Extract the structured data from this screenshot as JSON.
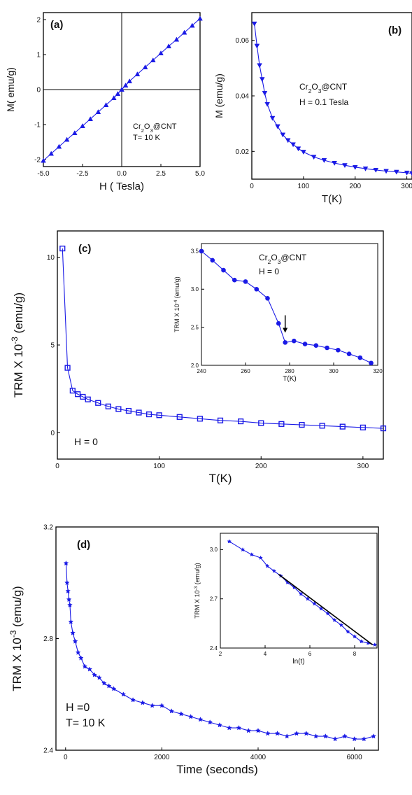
{
  "colors": {
    "series": "#1a1ae6",
    "axis": "#000000",
    "fit": "#000000"
  },
  "chart_data": [
    {
      "id": "a",
      "type": "scatter",
      "panel_label": "(a)",
      "xlabel": "H ( Tesla)",
      "ylabel": "M( emu/g)",
      "annotation_lines": [
        "Cr2O3@CNT",
        "T= 10 K"
      ],
      "xlim": [
        -5,
        5
      ],
      "ylim": [
        -2.2,
        2.2
      ],
      "xtick_values": [
        -5,
        -2.5,
        0,
        2.5,
        5
      ],
      "xtick_labels": [
        "-5.0",
        "-2.5",
        "0.0",
        "2.5",
        "5.0"
      ],
      "ytick_values": [
        -2,
        -1,
        0,
        1,
        2
      ],
      "ytick_labels": [
        "-2",
        "-1",
        "0",
        "1",
        "2"
      ],
      "zero_lines": true,
      "series": [
        {
          "marker": "triangle",
          "x": [
            -5.0,
            -4.5,
            -4.0,
            -3.5,
            -3.0,
            -2.5,
            -2.0,
            -1.5,
            -1.0,
            -0.5,
            -0.25,
            0.0,
            0.25,
            0.5,
            1.0,
            1.5,
            2.0,
            2.5,
            3.0,
            3.5,
            4.0,
            4.5,
            5.0
          ],
          "y": [
            -2.03,
            -1.83,
            -1.63,
            -1.43,
            -1.24,
            -1.04,
            -0.84,
            -0.64,
            -0.44,
            -0.24,
            -0.12,
            0.0,
            0.12,
            0.24,
            0.44,
            0.64,
            0.84,
            1.04,
            1.24,
            1.43,
            1.63,
            1.83,
            2.03
          ]
        }
      ]
    },
    {
      "id": "b",
      "type": "line",
      "panel_label": "(b)",
      "xlabel": "T(K)",
      "ylabel": "M (emu/g)",
      "annotation_lines": [
        "Cr2O3@CNT",
        "H = 0.1 Tesla"
      ],
      "xlim": [
        0,
        310
      ],
      "ylim": [
        0.01,
        0.07
      ],
      "xtick_values": [
        0,
        100,
        200,
        300
      ],
      "xtick_labels": [
        "0",
        "100",
        "200",
        "300"
      ],
      "ytick_values": [
        0.02,
        0.04,
        0.06
      ],
      "ytick_labels": [
        "0.02",
        "0.04",
        "0.06"
      ],
      "series": [
        {
          "marker": "triangle-down",
          "x": [
            5,
            10,
            15,
            20,
            25,
            30,
            40,
            50,
            60,
            70,
            80,
            90,
            100,
            120,
            140,
            160,
            180,
            200,
            220,
            240,
            260,
            280,
            300,
            310
          ],
          "y": [
            0.066,
            0.058,
            0.051,
            0.046,
            0.041,
            0.037,
            0.032,
            0.029,
            0.026,
            0.024,
            0.0225,
            0.021,
            0.0198,
            0.018,
            0.0168,
            0.0158,
            0.015,
            0.0143,
            0.0138,
            0.0133,
            0.0129,
            0.0126,
            0.0123,
            0.0121
          ]
        }
      ]
    },
    {
      "id": "c",
      "type": "line",
      "panel_label": "(c)",
      "xlabel": "T(K)",
      "ylabel": "TRM X 10-3 (emu/g)",
      "annotation_lines": [
        "H = 0"
      ],
      "xlim": [
        0,
        320
      ],
      "ylim": [
        -1.5,
        11.5
      ],
      "xtick_values": [
        0,
        100,
        200,
        300
      ],
      "xtick_labels": [
        "0",
        "100",
        "200",
        "300"
      ],
      "ytick_values": [
        0,
        5,
        10
      ],
      "ytick_labels": [
        "0",
        "5",
        "10"
      ],
      "series": [
        {
          "marker": "square",
          "x": [
            5,
            10,
            15,
            20,
            25,
            30,
            40,
            50,
            60,
            70,
            80,
            90,
            100,
            120,
            140,
            160,
            180,
            200,
            220,
            240,
            260,
            280,
            300,
            320
          ],
          "y": [
            10.5,
            3.7,
            2.4,
            2.2,
            2.05,
            1.9,
            1.7,
            1.5,
            1.35,
            1.25,
            1.15,
            1.05,
            1.0,
            0.9,
            0.8,
            0.7,
            0.65,
            0.55,
            0.5,
            0.45,
            0.4,
            0.35,
            0.3,
            0.25
          ]
        }
      ]
    },
    {
      "id": "c_inset",
      "type": "line",
      "xlabel": "T(K)",
      "ylabel": "TRM X 10-4 (emu/g)",
      "annotation_lines": [
        "Cr2O3@CNT",
        "H = 0"
      ],
      "xlim": [
        240,
        320
      ],
      "ylim": [
        2.0,
        3.6
      ],
      "xtick_values": [
        240,
        260,
        280,
        300,
        320
      ],
      "xtick_labels": [
        "240",
        "260",
        "280",
        "300",
        "320"
      ],
      "ytick_values": [
        2.0,
        2.5,
        3.0,
        3.5
      ],
      "ytick_labels": [
        "2.0",
        "2.5",
        "3.0",
        "3.5"
      ],
      "arrow_at_x": 278,
      "series": [
        {
          "marker": "circle",
          "x": [
            240,
            245,
            250,
            255,
            260,
            265,
            270,
            275,
            278,
            282,
            287,
            292,
            297,
            302,
            307,
            312,
            317
          ],
          "y": [
            3.5,
            3.38,
            3.25,
            3.12,
            3.1,
            3.0,
            2.88,
            2.55,
            2.3,
            2.32,
            2.28,
            2.26,
            2.23,
            2.2,
            2.15,
            2.1,
            2.03
          ]
        }
      ]
    },
    {
      "id": "d",
      "type": "line",
      "panel_label": "(d)",
      "xlabel": "Time (seconds)",
      "ylabel": "TRM X 10-3 (emu/g)",
      "annotation_lines": [
        "H =0",
        "T= 10 K"
      ],
      "xlim": [
        -200,
        6500
      ],
      "ylim": [
        2.4,
        3.2
      ],
      "xtick_values": [
        0,
        2000,
        4000,
        6000
      ],
      "xtick_labels": [
        "0",
        "2000",
        "4000",
        "6000"
      ],
      "ytick_values": [
        2.4,
        2.8,
        3.2
      ],
      "ytick_labels": [
        "2.4",
        "2.8",
        "3.2"
      ],
      "series": [
        {
          "marker": "star",
          "x": [
            10,
            30,
            50,
            70,
            90,
            110,
            150,
            200,
            260,
            320,
            400,
            500,
            600,
            700,
            800,
            900,
            1000,
            1200,
            1400,
            1600,
            1800,
            2000,
            2200,
            2400,
            2600,
            2800,
            3000,
            3200,
            3400,
            3600,
            3800,
            4000,
            4200,
            4400,
            4600,
            4800,
            5000,
            5200,
            5400,
            5600,
            5800,
            6000,
            6200,
            6400
          ],
          "y": [
            3.07,
            3.0,
            2.97,
            2.94,
            2.92,
            2.86,
            2.82,
            2.79,
            2.75,
            2.73,
            2.7,
            2.69,
            2.67,
            2.66,
            2.64,
            2.63,
            2.62,
            2.6,
            2.58,
            2.57,
            2.56,
            2.56,
            2.54,
            2.53,
            2.52,
            2.51,
            2.5,
            2.49,
            2.48,
            2.48,
            2.47,
            2.47,
            2.46,
            2.46,
            2.45,
            2.46,
            2.46,
            2.45,
            2.45,
            2.44,
            2.45,
            2.44,
            2.44,
            2.45
          ]
        }
      ]
    },
    {
      "id": "d_inset",
      "type": "line",
      "xlabel": "ln(t)",
      "ylabel": "TRM X 10-3 (emu/g)",
      "xlim": [
        2,
        9
      ],
      "ylim": [
        2.4,
        3.1
      ],
      "xtick_values": [
        2,
        4,
        6,
        8
      ],
      "xtick_labels": [
        "2",
        "4",
        "6",
        "8"
      ],
      "ytick_values": [
        2.4,
        2.7,
        3.0
      ],
      "ytick_labels": [
        "2.4",
        "2.7",
        "3.0"
      ],
      "fit_x": [
        4.6,
        8.8
      ],
      "fit_y": [
        2.85,
        2.42
      ],
      "series": [
        {
          "marker": "star",
          "x": [
            2.4,
            3.0,
            3.4,
            3.8,
            4.1,
            4.4,
            4.7,
            5.0,
            5.3,
            5.6,
            5.9,
            6.2,
            6.5,
            6.8,
            7.1,
            7.4,
            7.7,
            8.0,
            8.3,
            8.6,
            8.9
          ],
          "y": [
            3.05,
            3.0,
            2.97,
            2.95,
            2.9,
            2.87,
            2.84,
            2.8,
            2.77,
            2.73,
            2.7,
            2.67,
            2.64,
            2.61,
            2.57,
            2.54,
            2.5,
            2.47,
            2.44,
            2.43,
            2.42
          ]
        }
      ]
    }
  ]
}
